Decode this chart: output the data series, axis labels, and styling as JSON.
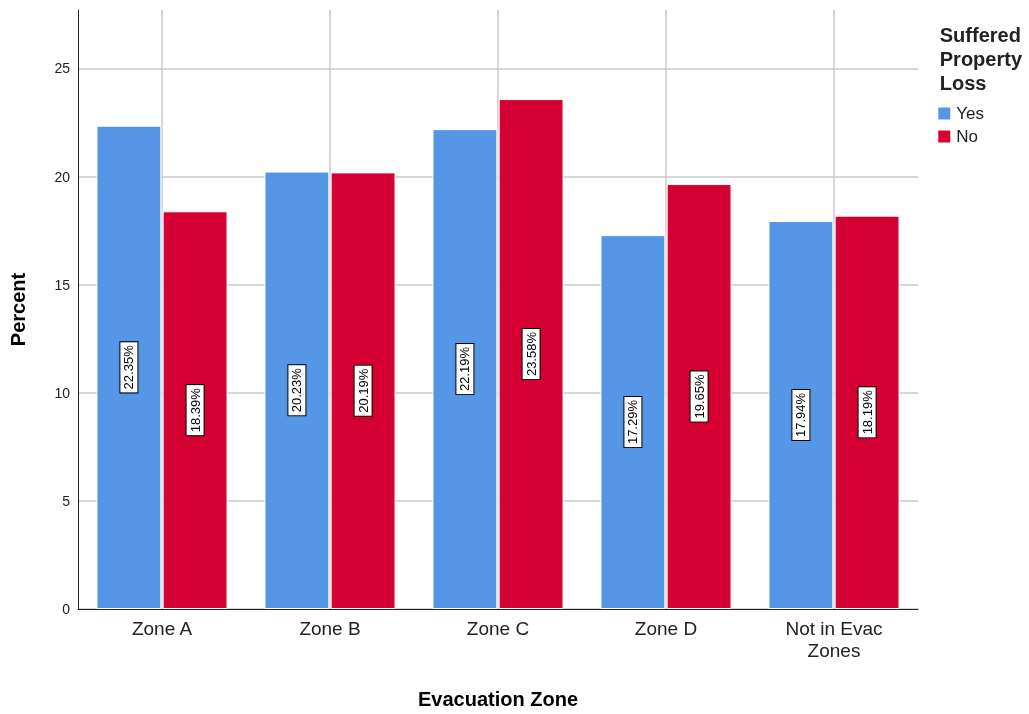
{
  "chart_data": {
    "type": "bar",
    "xlabel": "Evacuation Zone",
    "ylabel": "Percent",
    "legend_title": "Suffered\nProperty\nLoss",
    "categories": [
      "Zone A",
      "Zone B",
      "Zone C",
      "Zone D",
      "Not in Evac\nZones"
    ],
    "series": [
      {
        "name": "Yes",
        "color": "#5596e6",
        "values": [
          22.35,
          20.23,
          22.19,
          17.29,
          17.94
        ],
        "value_labels": [
          "22.35%",
          "20.23%",
          "22.19%",
          "17.29%",
          "17.94%"
        ]
      },
      {
        "name": "No",
        "color": "#d50032",
        "values": [
          18.39,
          20.19,
          23.58,
          19.65,
          18.19
        ],
        "value_labels": [
          "18.39%",
          "20.19%",
          "23.58%",
          "19.65%",
          "18.19%"
        ]
      }
    ],
    "ylim": [
      0,
      27.7
    ],
    "yticks": [
      0,
      5,
      10,
      15,
      20,
      25
    ],
    "grid": true,
    "legend": "top right"
  }
}
